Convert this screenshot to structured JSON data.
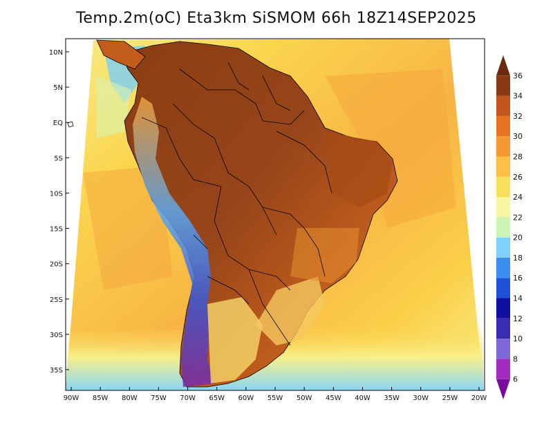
{
  "title": "Temp.2m(oC) Eta3km SiSMOM 66h 18Z14SEP2025",
  "map": {
    "lat_labels": [
      "10N",
      "5N",
      "EQ",
      "5S",
      "10S",
      "15S",
      "20S",
      "25S",
      "30S",
      "35S"
    ],
    "lon_labels": [
      "90W",
      "85W",
      "80W",
      "75W",
      "70W",
      "65W",
      "60W",
      "55W",
      "50W",
      "45W",
      "40W",
      "35W",
      "30W",
      "25W",
      "20W"
    ],
    "lat_values": [
      10,
      5,
      0,
      -5,
      -10,
      -15,
      -20,
      -25,
      -30,
      -35
    ],
    "lon_values": [
      -90,
      -85,
      -80,
      -75,
      -70,
      -65,
      -60,
      -55,
      -50,
      -45,
      -40,
      -35,
      -30,
      -25,
      -20
    ]
  },
  "colorbar": {
    "levels": [
      6,
      8,
      10,
      12,
      14,
      16,
      18,
      20,
      22,
      24,
      26,
      28,
      30,
      32,
      34,
      36
    ],
    "labels": [
      "6",
      "8",
      "10",
      "12",
      "14",
      "16",
      "18",
      "20",
      "22",
      "24",
      "26",
      "28",
      "30",
      "32",
      "34",
      "36"
    ],
    "colors": [
      "#7a0a9e",
      "#a42bbf",
      "#7f66d9",
      "#3a2bb5",
      "#1010a0",
      "#1e50d8",
      "#3c8ef0",
      "#7fd0fa",
      "#ccf5b5",
      "#f6f5a0",
      "#f9e05a",
      "#fdbf45",
      "#f59a30",
      "#e57320",
      "#c2561a",
      "#8a3a12",
      "#6a2a0e"
    ]
  },
  "colors": {
    "ocean_warm": "#f5ac3f",
    "ocean_mid": "#fbd24c",
    "ocean_cool": "#f7ef8a",
    "land_hot": "#8a4012",
    "land_warm": "#c25c1c",
    "andes_cold": "#3a52d0",
    "border": "#000000"
  }
}
